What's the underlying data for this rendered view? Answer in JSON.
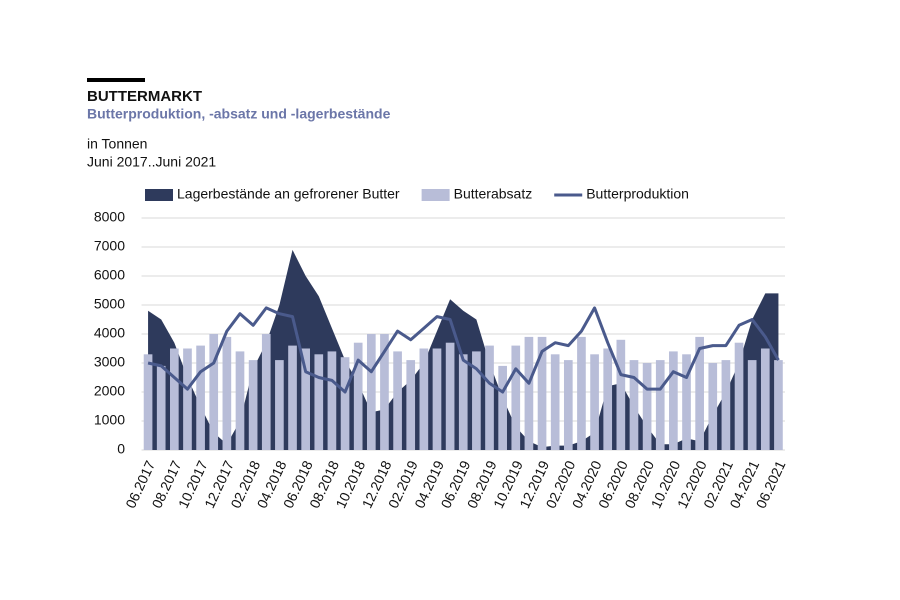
{
  "chart_data": {
    "type": "combo",
    "title": "BUTTERMARKT",
    "subtitle": "Butterproduktion,  -absatz und -lagerbestände",
    "unit_label": "in Tonnen",
    "period_label": "Juni 2017..Juni 2021",
    "categories": [
      "06.2017",
      null,
      "08.2017",
      null,
      "10.2017",
      null,
      "12.2017",
      null,
      "02.2018",
      null,
      "04.2018",
      null,
      "06.2018",
      null,
      "08.2018",
      null,
      "10.2018",
      null,
      "12.2018",
      null,
      "02.2019",
      null,
      "04.2019",
      null,
      "06.2019",
      null,
      "08.2019",
      null,
      "10.2019",
      null,
      "12.2019",
      null,
      "02.2020",
      null,
      "04.2020",
      null,
      "06.2020",
      null,
      "08.2020",
      null,
      "10.2020",
      null,
      "12.2020",
      null,
      "02.2021",
      null,
      "04.2021",
      null,
      "06.2021"
    ],
    "series": [
      {
        "name": "Lagerbestände an gefrorener Butter",
        "kind": "area",
        "color": "#2e3a5c",
        "values": [
          4800,
          4500,
          3700,
          2500,
          1500,
          600,
          200,
          1000,
          2800,
          3700,
          5000,
          6900,
          6000,
          5300,
          4200,
          3100,
          2300,
          1300,
          1400,
          2000,
          2400,
          3000,
          4100,
          5200,
          4800,
          4500,
          3000,
          1800,
          800,
          300,
          100,
          150,
          150,
          300,
          600,
          2200,
          2300,
          1500,
          800,
          200,
          200,
          400,
          300,
          1200,
          2000,
          3000,
          4500,
          5400,
          5400
        ]
      },
      {
        "name": "Butterabsatz",
        "kind": "bar",
        "color": "#b8bdd8",
        "values": [
          3300,
          2900,
          3500,
          3500,
          3600,
          4000,
          3900,
          3400,
          3100,
          4000,
          3100,
          3600,
          3500,
          3300,
          3400,
          3200,
          3700,
          4000,
          4000,
          3400,
          3100,
          3500,
          3500,
          3700,
          3300,
          3400,
          3600,
          2900,
          3600,
          3900,
          3900,
          3300,
          3100,
          3900,
          3300,
          3500,
          3800,
          3100,
          3000,
          3100,
          3400,
          3300,
          3900,
          3000,
          3100,
          3700,
          3100,
          3500,
          3100
        ]
      },
      {
        "name": "Butterproduktion",
        "kind": "line",
        "color": "#4a5a8c",
        "values": [
          3000,
          2900,
          2500,
          2100,
          2700,
          3000,
          4100,
          4700,
          4300,
          4900,
          4700,
          4600,
          2700,
          2500,
          2400,
          2000,
          3100,
          2700,
          3400,
          4100,
          3800,
          4200,
          4600,
          4500,
          3100,
          2800,
          2300,
          2000,
          2800,
          2300,
          3400,
          3700,
          3600,
          4100,
          4900,
          3700,
          2600,
          2500,
          2100,
          2100,
          2700,
          2500,
          3500,
          3600,
          3600,
          4300,
          4500,
          3900,
          3100
        ]
      }
    ],
    "ylim": [
      0,
      8000
    ],
    "yticks": [
      0,
      1000,
      2000,
      3000,
      4000,
      5000,
      6000,
      7000,
      8000
    ],
    "grid": true
  }
}
